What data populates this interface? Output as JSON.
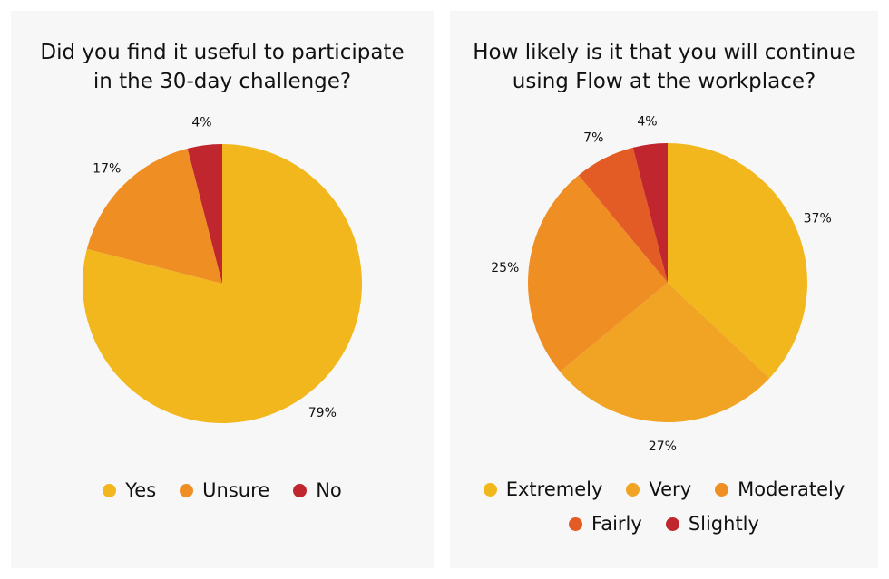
{
  "chart_data": [
    {
      "type": "pie",
      "title": "Did you find it useful to participate\nin the 30-day challenge?",
      "slices": [
        {
          "name": "Yes",
          "value": 79,
          "label": "79%",
          "color": "#F2B71C"
        },
        {
          "name": "Unsure",
          "value": 17,
          "label": "17%",
          "color": "#EF8E23"
        },
        {
          "name": "No",
          "value": 4,
          "label": "4%",
          "color": "#C0262D"
        }
      ],
      "legend_position": "bottom"
    },
    {
      "type": "pie",
      "title": "How likely is it that you will continue\nusing Flow at the workplace?",
      "slices": [
        {
          "name": "Extremely",
          "value": 37,
          "label": "37%",
          "color": "#F2B71C"
        },
        {
          "name": "Very",
          "value": 27,
          "label": "27%",
          "color": "#F1A323"
        },
        {
          "name": "Moderately",
          "value": 25,
          "label": "25%",
          "color": "#EF8E23"
        },
        {
          "name": "Fairly",
          "value": 7,
          "label": "7%",
          "color": "#E45C25"
        },
        {
          "name": "Slightly",
          "value": 4,
          "label": "4%",
          "color": "#C0262D"
        }
      ],
      "legend_position": "bottom"
    }
  ]
}
